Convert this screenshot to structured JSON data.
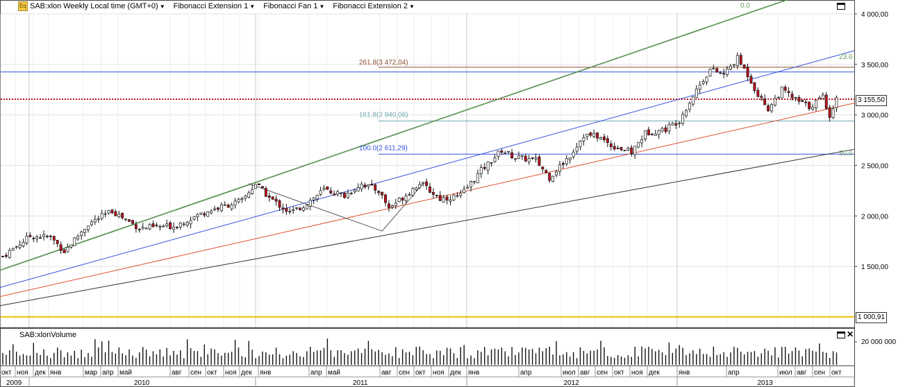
{
  "toolbar": {
    "symbol": "SAB:xlon Weekly Local time (GMT+0)",
    "items": [
      "Fibonacci Extension 1",
      "Fibonacci Fan 1",
      "Fibonacci Extension 2"
    ]
  },
  "volume_title": "SAB:xlonVolume",
  "price_boxes": {
    "last": "3 155,50",
    "low": "1 000,91"
  },
  "colors": {
    "candle_up": "#ffffff",
    "candle_down": "#c0101c",
    "last_price_line": "#c0101c",
    "low_line": "#f0c000",
    "fan_green": "#6aa062",
    "fan_blue": "#3050e0",
    "fan_red": "#e05030",
    "fan_black": "#303030",
    "trend_dark_green": "#2f6a2a",
    "ext_brown": "#8a5030",
    "ext_teal": "#70a8b0"
  },
  "chart_data": {
    "type": "candlestick",
    "period": "weekly",
    "y_ticks": [
      "4 000,00",
      "3 500,00",
      "3 000,00",
      "2 500,00",
      "2 000,00",
      "1 500,00"
    ],
    "y_tick_values": [
      4000,
      3500,
      3000,
      2500,
      2000,
      1500
    ],
    "ylim": [
      980,
      4150
    ],
    "month_labels": [
      "окт",
      "ноя",
      "дек",
      "янв",
      "мар",
      "апр",
      "май",
      "авг",
      "сен",
      "окт",
      "ноя",
      "дек",
      "янв",
      "апр",
      "май",
      "авг",
      "сен",
      "окт",
      "ноя",
      "дек",
      "янв",
      "апр",
      "июл",
      "авг",
      "сен",
      "окт",
      "ноя",
      "дек",
      "янв",
      "апр",
      "июл",
      "авг",
      "сен",
      "окт"
    ],
    "year_labels": [
      "2009",
      "2010",
      "2011",
      "2012",
      "2013"
    ],
    "last_price": 3155.5,
    "low_level": 1000.91,
    "fib_levels": [
      {
        "label": "261.8",
        "value": "3 472,04"
      },
      {
        "label": "161.8",
        "value": "2 940,06"
      },
      {
        "label": "100.0",
        "value": "2 611,29"
      }
    ],
    "fan_labels": [
      "0.0",
      "23.6",
      "50.0"
    ],
    "close_anchors": [
      {
        "w": 0,
        "c": 1600
      },
      {
        "w": 8,
        "c": 1800
      },
      {
        "w": 14,
        "c": 1790
      },
      {
        "w": 18,
        "c": 1650
      },
      {
        "w": 25,
        "c": 1920
      },
      {
        "w": 32,
        "c": 2050
      },
      {
        "w": 40,
        "c": 1880
      },
      {
        "w": 50,
        "c": 1900
      },
      {
        "w": 60,
        "c": 2050
      },
      {
        "w": 70,
        "c": 2150
      },
      {
        "w": 74,
        "c": 2320
      },
      {
        "w": 78,
        "c": 2180
      },
      {
        "w": 84,
        "c": 2030
      },
      {
        "w": 88,
        "c": 2100
      },
      {
        "w": 94,
        "c": 2260
      },
      {
        "w": 100,
        "c": 2200
      },
      {
        "w": 105,
        "c": 2320
      },
      {
        "w": 110,
        "c": 2250
      },
      {
        "w": 113,
        "c": 2080
      },
      {
        "w": 118,
        "c": 2210
      },
      {
        "w": 122,
        "c": 2330
      },
      {
        "w": 128,
        "c": 2170
      },
      {
        "w": 134,
        "c": 2200
      },
      {
        "w": 140,
        "c": 2450
      },
      {
        "w": 146,
        "c": 2650
      },
      {
        "w": 150,
        "c": 2580
      },
      {
        "w": 156,
        "c": 2550
      },
      {
        "w": 160,
        "c": 2380
      },
      {
        "w": 166,
        "c": 2600
      },
      {
        "w": 170,
        "c": 2800
      },
      {
        "w": 174,
        "c": 2790
      },
      {
        "w": 178,
        "c": 2700
      },
      {
        "w": 184,
        "c": 2630
      },
      {
        "w": 188,
        "c": 2820
      },
      {
        "w": 194,
        "c": 2860
      },
      {
        "w": 198,
        "c": 2950
      },
      {
        "w": 203,
        "c": 3250
      },
      {
        "w": 207,
        "c": 3450
      },
      {
        "w": 211,
        "c": 3400
      },
      {
        "w": 215,
        "c": 3560
      },
      {
        "w": 218,
        "c": 3400
      },
      {
        "w": 221,
        "c": 3200
      },
      {
        "w": 224,
        "c": 3060
      },
      {
        "w": 228,
        "c": 3250
      },
      {
        "w": 232,
        "c": 3150
      },
      {
        "w": 236,
        "c": 3080
      },
      {
        "w": 240,
        "c": 3180
      },
      {
        "w": 242,
        "c": 3000
      },
      {
        "w": 244,
        "c": 3155.5
      }
    ]
  }
}
